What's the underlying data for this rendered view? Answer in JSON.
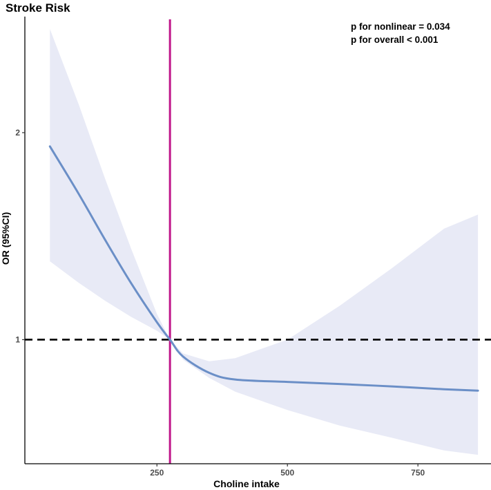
{
  "chart_data": {
    "type": "line",
    "title": "Stroke Risk",
    "xlabel": "Choline intake",
    "ylabel": "OR (95%CI)",
    "xlim": [
      -3,
      890
    ],
    "ylim": [
      0.66,
      2.95
    ],
    "log_y": true,
    "x_ticks": [
      250,
      500,
      750
    ],
    "y_ticks": [
      1,
      2
    ],
    "grid": false,
    "annotations": [
      "p for nonlinear = 0.034",
      "p for overall < 0.001"
    ],
    "reference_line_x": 275,
    "reference_line_y": 1,
    "colors": {
      "curve": "#6b8fc7",
      "ci_band": "#e8eaf6",
      "vertical_line": "#c0168a",
      "reference_line": "#000000"
    },
    "series": [
      {
        "x": [
          45,
          100,
          150,
          200,
          250,
          275,
          300,
          350,
          400,
          500,
          600,
          700,
          800,
          865
        ],
        "y": [
          1.91,
          1.63,
          1.4,
          1.21,
          1.06,
          1.0,
          0.945,
          0.895,
          0.875,
          0.868,
          0.862,
          0.855,
          0.847,
          0.843
        ],
        "lower": [
          1.3,
          1.21,
          1.14,
          1.08,
          1.03,
          1.0,
          0.935,
          0.88,
          0.84,
          0.79,
          0.75,
          0.72,
          0.69,
          0.68
        ],
        "upper": [
          2.83,
          2.2,
          1.72,
          1.36,
          1.09,
          1.0,
          0.955,
          0.93,
          0.94,
          1.0,
          1.12,
          1.27,
          1.45,
          1.52
        ]
      }
    ]
  }
}
